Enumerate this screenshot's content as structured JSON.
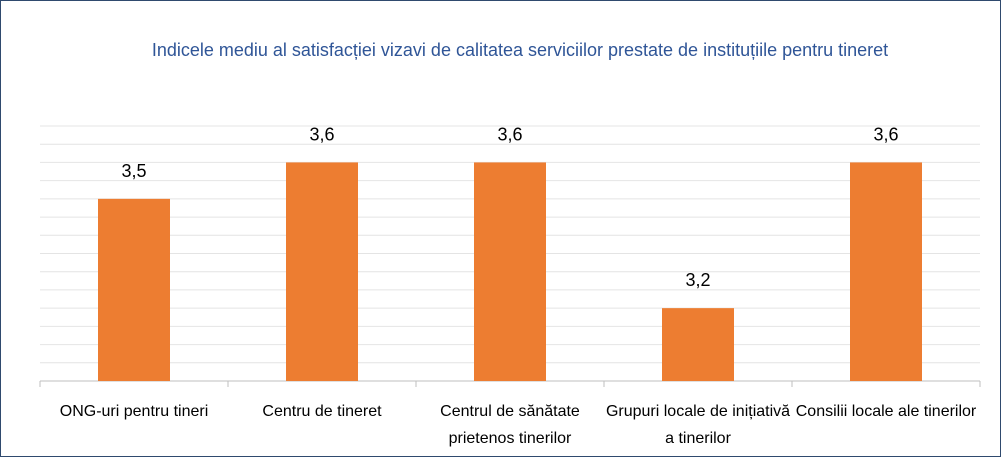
{
  "chart_data": {
    "type": "bar",
    "title": "Indicele mediu al satisfacției vizavi de calitatea serviciilor prestate de instituțiile pentru tineret",
    "categories": [
      "ONG-uri pentru tineri",
      "Centru de tineret",
      "Centrul de sănătate prietenos tinerilor",
      "Grupuri locale de inițiativă a tinerilor",
      "Consilii locale ale tinerilor"
    ],
    "values": [
      3.5,
      3.6,
      3.6,
      3.2,
      3.6
    ],
    "value_labels": [
      "3,5",
      "3,6",
      "3,6",
      "3,2",
      "3,6"
    ],
    "color": "#ed7d31",
    "ylim": [
      3.0,
      3.7
    ],
    "yticks": [
      3.0,
      3.05,
      3.1,
      3.15,
      3.2,
      3.25,
      3.3,
      3.35,
      3.4,
      3.45,
      3.5,
      3.55,
      3.6,
      3.65,
      3.7
    ],
    "grid": true
  }
}
